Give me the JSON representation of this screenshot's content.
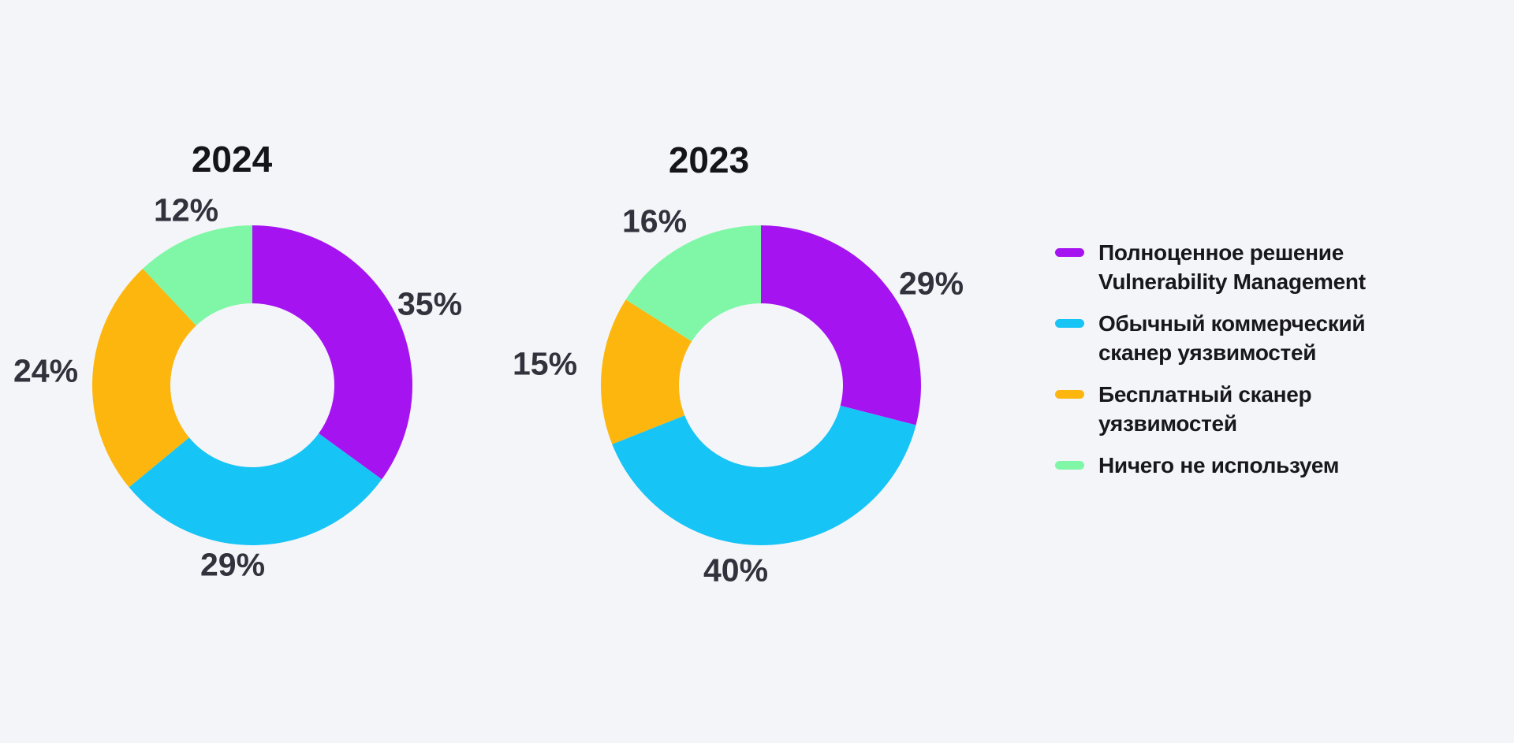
{
  "page": {
    "background": "#F4F5F9",
    "text_color": "#32323D"
  },
  "chart_data": [
    {
      "type": "pie",
      "subtype": "donut",
      "title": "2024",
      "labels": [
        "Полноценное решение Vulnerability Management",
        "Обычный коммерческий сканер уязвимостей",
        "Бесплатный сканер уязвимостей",
        "Ничего не используем"
      ],
      "values": [
        35,
        29,
        24,
        12
      ],
      "display_values": [
        "35%",
        "29%",
        "24%",
        "12%"
      ],
      "colors": [
        "#A514F0",
        "#17C4F6",
        "#FCB60E",
        "#80F7A6"
      ],
      "start_angle_deg": 0,
      "direction": "clockwise",
      "inner_radius_ratio": 0.51,
      "legend_position": "right"
    },
    {
      "type": "pie",
      "subtype": "donut",
      "title": "2023",
      "labels": [
        "Полноценное решение Vulnerability Management",
        "Обычный коммерческий сканер уязвимостей",
        "Бесплатный сканер уязвимостей",
        "Ничего не используем"
      ],
      "values": [
        29,
        40,
        15,
        16
      ],
      "display_values": [
        "29%",
        "40%",
        "15%",
        "16%"
      ],
      "colors": [
        "#A514F0",
        "#17C4F6",
        "#FCB60E",
        "#80F7A6"
      ],
      "start_angle_deg": 0,
      "direction": "clockwise",
      "inner_radius_ratio": 0.51,
      "legend_position": "right"
    }
  ],
  "legend": {
    "items": [
      {
        "color": "#A514F0",
        "lines": [
          "Полноценное решение",
          "Vulnerability Management"
        ]
      },
      {
        "color": "#17C4F6",
        "lines": [
          "Обычный коммерческий",
          "сканер уязвимостей"
        ]
      },
      {
        "color": "#FCB60E",
        "lines": [
          "Бесплатный сканер",
          "уязвимостей"
        ]
      },
      {
        "color": "#80F7A6",
        "lines": [
          "Ничего не используем"
        ]
      }
    ]
  }
}
